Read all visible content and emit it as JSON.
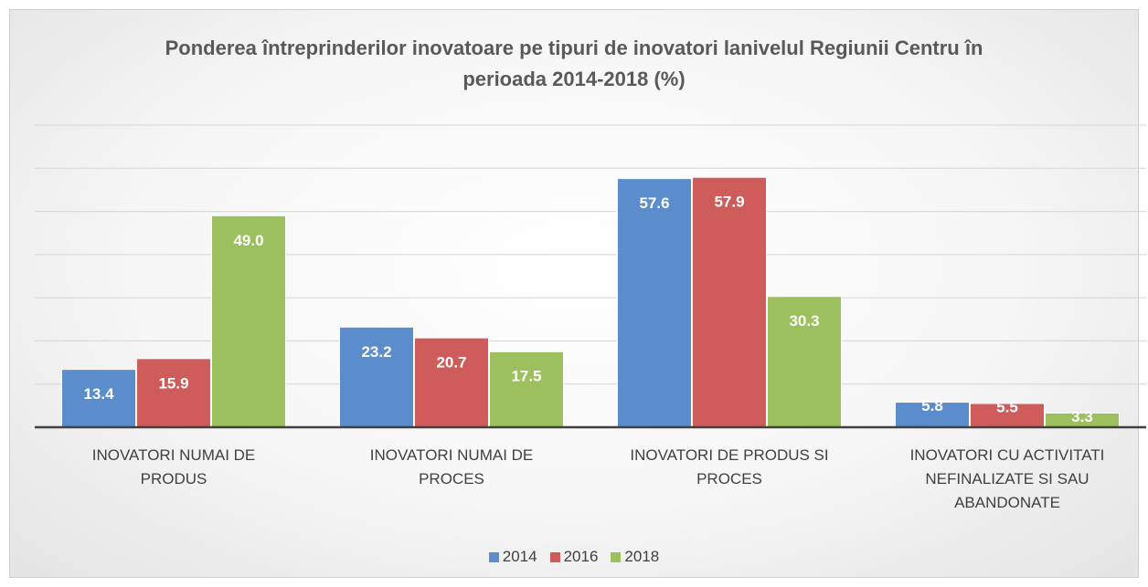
{
  "chart_data": {
    "type": "bar",
    "title": "Ponderea întreprinderilor inovatoare  pe tipuri de inovatori lanivelul Regiunii Centru în perioada 2014-2018 (%)",
    "categories": [
      "INOVATORI NUMAI DE PRODUS",
      "INOVATORI NUMAI DE PROCES",
      "INOVATORI DE PRODUS SI PROCES",
      "INOVATORI CU ACTIVITATI NEFINALIZATE SI SAU ABANDONATE"
    ],
    "series": [
      {
        "name": "2014",
        "color": "#5b8ccb",
        "values": [
          13.4,
          23.2,
          57.6,
          5.8
        ],
        "value_labels": [
          "13.4",
          "23.2",
          "57.6",
          "5.8"
        ]
      },
      {
        "name": "2016",
        "color": "#cd5c5a",
        "values": [
          15.9,
          20.7,
          57.9,
          5.5
        ],
        "value_labels": [
          "15.9",
          "20.7",
          "57.9",
          "5.5"
        ]
      },
      {
        "name": "2018",
        "color": "#9dc05f",
        "values": [
          49.0,
          17.5,
          30.3,
          3.3
        ],
        "value_labels": [
          "49.0",
          "17.5",
          "30.3",
          "3.3"
        ]
      }
    ],
    "ylim": [
      0,
      70
    ],
    "yticks": [
      0,
      10,
      20,
      30,
      40,
      50,
      60,
      70
    ],
    "grid": true,
    "legend": "bottom"
  }
}
